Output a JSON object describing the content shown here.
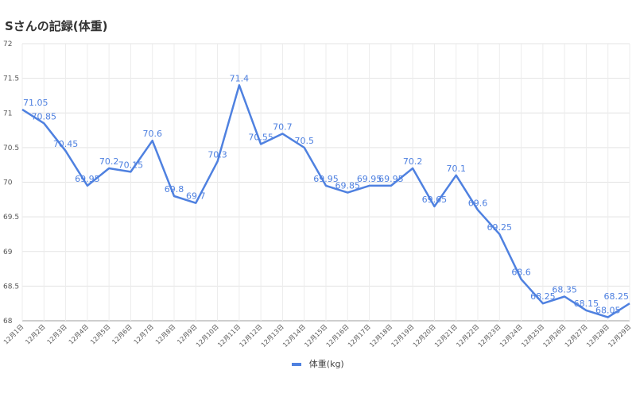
{
  "chart_data": {
    "type": "line",
    "title": "Sさんの記録(体重)",
    "categories": [
      "12月1日",
      "12月2日",
      "12月3日",
      "12月4日",
      "12月5日",
      "12月6日",
      "12月7日",
      "12月8日",
      "12月9日",
      "12月10日",
      "12月11日",
      "12月12日",
      "12月13日",
      "12月14日",
      "12月15日",
      "12月16日",
      "12月17日",
      "12月18日",
      "12月19日",
      "12月20日",
      "12月21日",
      "12月22日",
      "12月23日",
      "12月24日",
      "12月25日",
      "12月26日",
      "12月27日",
      "12月28日",
      "12月29日"
    ],
    "series": [
      {
        "name": "体重(kg)",
        "color": "#4f81e0",
        "values": [
          71.05,
          70.85,
          70.45,
          69.95,
          70.2,
          70.15,
          70.6,
          69.8,
          69.7,
          70.3,
          71.4,
          70.55,
          70.7,
          70.5,
          69.95,
          69.85,
          69.95,
          69.95,
          70.2,
          69.65,
          70.1,
          69.6,
          69.25,
          68.6,
          68.25,
          68.35,
          68.15,
          68.05,
          68.25
        ]
      }
    ],
    "ylim": [
      68,
      72
    ],
    "yticks": [
      "68",
      "68.5",
      "69",
      "69.5",
      "70",
      "70.5",
      "71",
      "71.5",
      "72"
    ],
    "data_labels": [
      "71.05",
      "70.85",
      "70.45",
      "69.95",
      "70.2",
      "70.15",
      "70.6",
      "69.8",
      "69.7",
      "70.3",
      "71.4",
      "70.55",
      "70.7",
      "70.5",
      "69.95",
      "69.85",
      "69.95",
      "69.95",
      "70.2",
      "69.65",
      "70.1",
      "69.6",
      "69.25",
      "68.6",
      "68.25",
      "68.35",
      "68.15",
      "68.05",
      "68.25"
    ],
    "grid": true,
    "legend": "bottom"
  }
}
